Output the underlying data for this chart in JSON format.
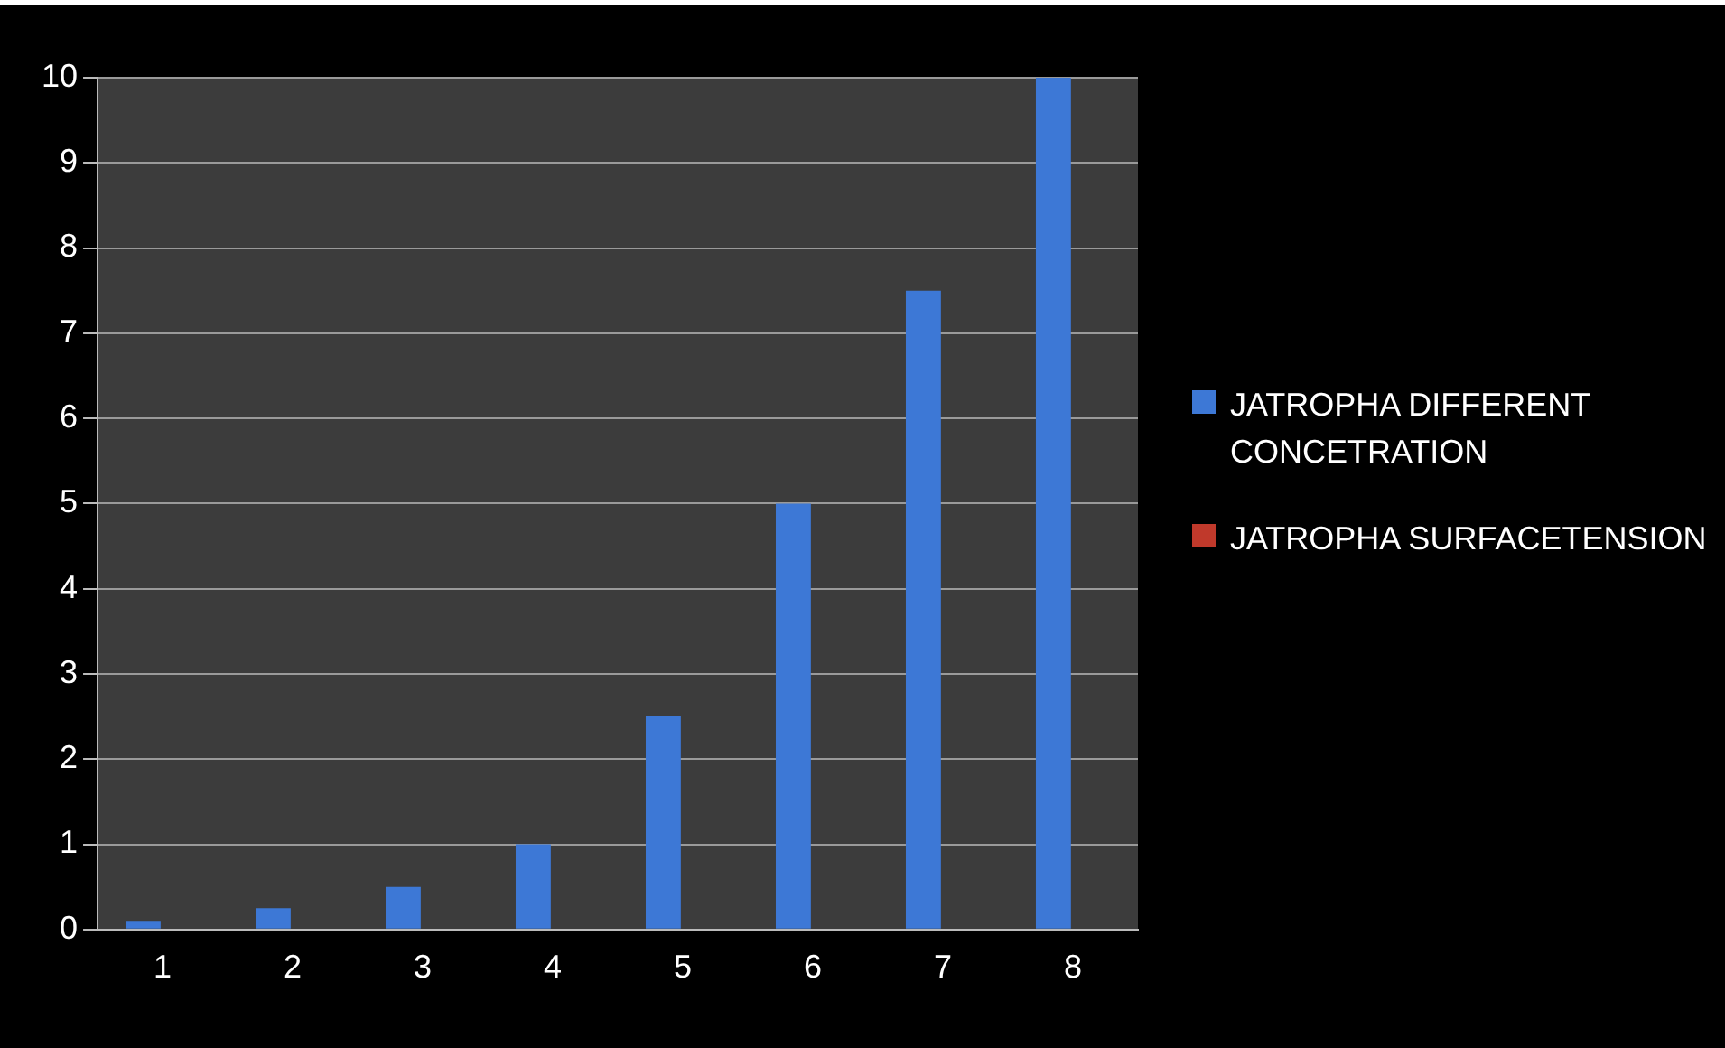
{
  "chart_data": {
    "type": "bar",
    "categories": [
      "1",
      "2",
      "3",
      "4",
      "5",
      "6",
      "7",
      "8"
    ],
    "series": [
      {
        "name": "JATROPHA DIFFERENT CONCETRATION",
        "color": "#3d78d6",
        "values": [
          0.1,
          0.25,
          0.5,
          1,
          2.5,
          5,
          7.5,
          10
        ]
      },
      {
        "name": "JATROPHA SURFACETENSION",
        "color": "#c0392b",
        "values": [
          0,
          0,
          0,
          0,
          0,
          0,
          0,
          0
        ]
      }
    ],
    "ylim": [
      0,
      10
    ],
    "yticks": [
      0,
      1,
      2,
      3,
      4,
      5,
      6,
      7,
      8,
      9,
      10
    ],
    "grid": "y",
    "legend": "right"
  }
}
